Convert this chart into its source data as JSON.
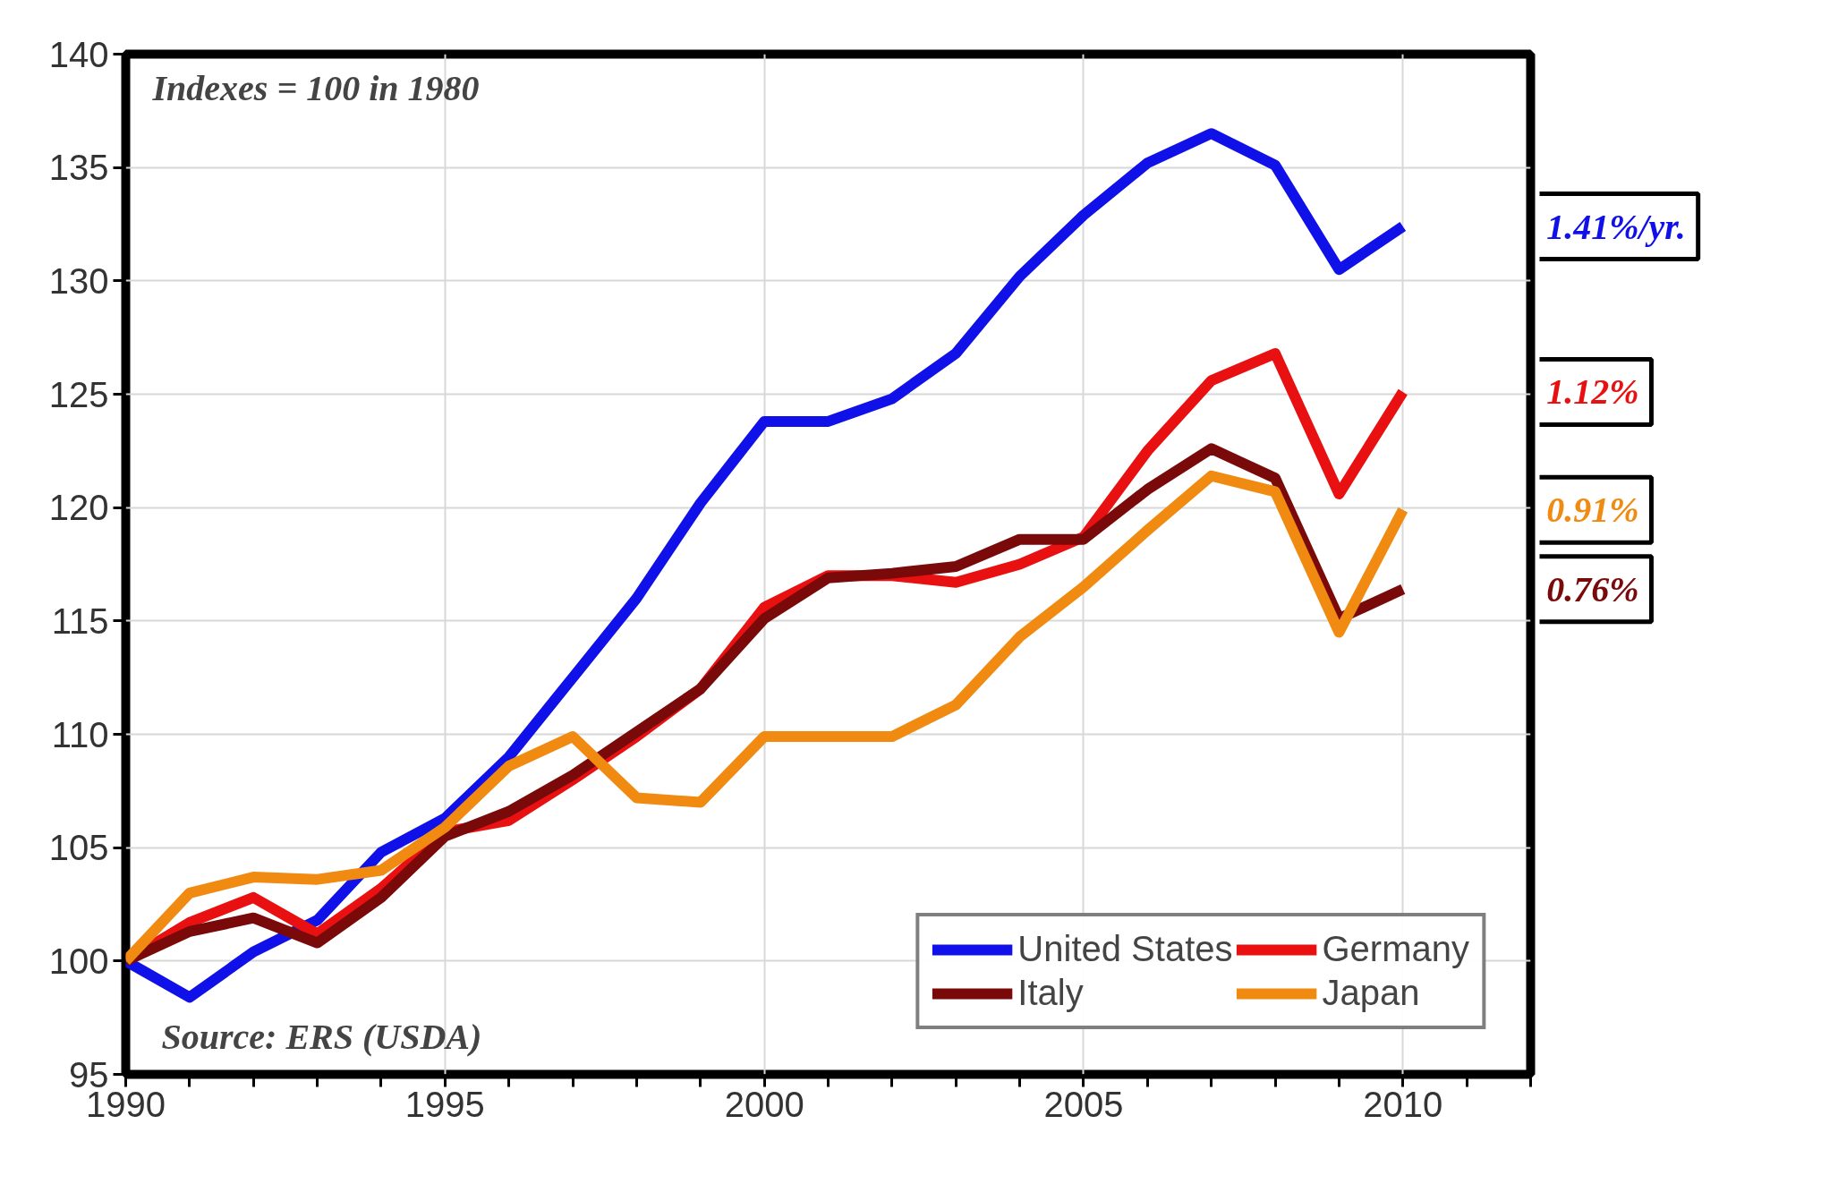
{
  "chart_data": {
    "type": "line",
    "x": [
      1990,
      1991,
      1992,
      1993,
      1994,
      1995,
      1996,
      1997,
      1998,
      1999,
      2000,
      2001,
      2002,
      2003,
      2004,
      2005,
      2006,
      2007,
      2008,
      2009,
      2010
    ],
    "series": [
      {
        "name": "United States",
        "color": "#1010e8",
        "values": [
          100,
          98.4,
          100.4,
          101.8,
          104.8,
          106.3,
          109,
          112.5,
          116,
          120.2,
          123.8,
          123.8,
          124.8,
          126.8,
          130.2,
          132.9,
          135.2,
          136.5,
          135.1,
          130.5,
          132.4
        ]
      },
      {
        "name": "Germany",
        "color": "#e81010",
        "values": [
          100,
          101.7,
          102.8,
          101.2,
          103.2,
          105.7,
          106.2,
          108,
          109.9,
          112,
          115.6,
          117,
          117,
          116.7,
          117.5,
          118.7,
          122.5,
          125.6,
          126.8,
          120.6,
          125.1
        ]
      },
      {
        "name": "Italy",
        "color": "#7a0a0a",
        "values": [
          100,
          101.3,
          101.9,
          100.8,
          102.8,
          105.5,
          106.6,
          108.2,
          110.1,
          112,
          115.1,
          116.9,
          117.1,
          117.4,
          118.6,
          118.6,
          120.8,
          122.6,
          121.3,
          115.1,
          116.4
        ]
      },
      {
        "name": "Japan",
        "color": "#f08a10",
        "values": [
          100,
          103,
          103.7,
          103.6,
          104,
          105.9,
          108.6,
          109.9,
          107.2,
          107,
          109.9,
          109.9,
          109.9,
          111.3,
          114.3,
          116.5,
          119,
          121.4,
          120.7,
          114.5,
          119.9
        ]
      }
    ],
    "xlim": [
      1990,
      2012
    ],
    "xticks": [
      1990,
      {
        "value": 1991,
        "label": null
      },
      {
        "value": 1992,
        "label": null
      },
      {
        "value": 1993,
        "label": null
      },
      {
        "value": 1994,
        "label": null
      },
      1995,
      {
        "value": 1996,
        "label": null
      },
      {
        "value": 1997,
        "label": null
      },
      {
        "value": 1998,
        "label": null
      },
      {
        "value": 1999,
        "label": null
      },
      2000,
      {
        "value": 2001,
        "label": null
      },
      {
        "value": 2002,
        "label": null
      },
      {
        "value": 2003,
        "label": null
      },
      {
        "value": 2004,
        "label": null
      },
      2005,
      {
        "value": 2006,
        "label": null
      },
      {
        "value": 2007,
        "label": null
      },
      {
        "value": 2008,
        "label": null
      },
      {
        "value": 2009,
        "label": null
      },
      2010,
      {
        "value": 2011,
        "label": null
      },
      {
        "value": 2012,
        "label": null
      }
    ],
    "ylim": [
      95,
      140
    ],
    "yticks": [
      95,
      100,
      105,
      110,
      115,
      120,
      125,
      130,
      135,
      140
    ],
    "grid": true,
    "legend": "bottom right",
    "marker": "none",
    "line_style": "solid",
    "annotations": [
      "Indexes = 100 in 1980",
      "Source: ERS (USDA)",
      "1.41%/yr.",
      "1.12%",
      "0.91%",
      "0.76%"
    ]
  }
}
